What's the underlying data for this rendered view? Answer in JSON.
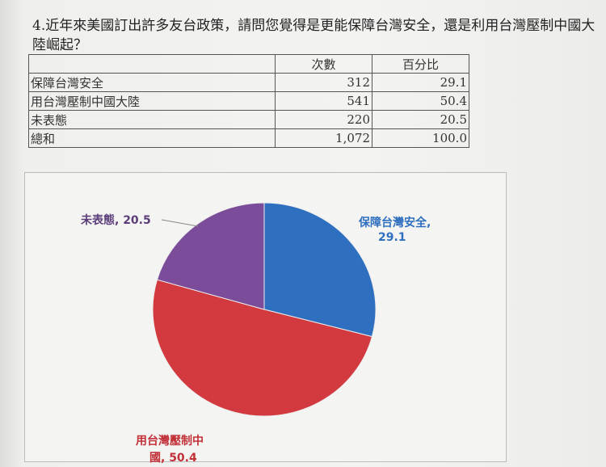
{
  "question": "4.近年來美國訂出許多友台政策，請問您覺得是更能保障台灣安全，還是利用台灣壓制中國大陸崛起？",
  "table": {
    "headers": [
      "",
      "次數",
      "百分比"
    ],
    "rows": [
      [
        "保障台灣安全",
        "312",
        "29.1"
      ],
      [
        "用台灣壓制中國大陸",
        "541",
        "50.4"
      ],
      [
        "未表態",
        "220",
        "20.5"
      ],
      [
        "總和",
        "1,072",
        "100.0"
      ]
    ]
  },
  "chart_data": {
    "type": "pie",
    "categories": [
      "保障台灣安全",
      "用台灣壓制中國大陸",
      "未表態"
    ],
    "values": [
      29.1,
      50.4,
      20.5
    ],
    "colors": [
      "#2f6fbf",
      "#d23a3f",
      "#7a4c9a"
    ],
    "labels": {
      "blue_line1": "保障台灣安全,",
      "blue_line2": "29.1",
      "red_line1": "用台灣壓制中",
      "red_line2": "國, 50.4",
      "purple": "未表態, 20.5"
    }
  }
}
